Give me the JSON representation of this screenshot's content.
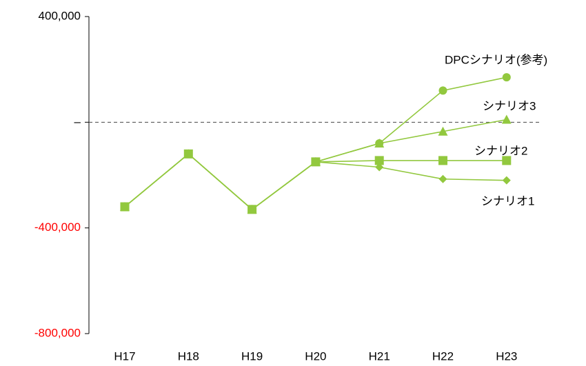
{
  "chart_data": {
    "type": "line",
    "categories": [
      "H17",
      "H18",
      "H19",
      "H20",
      "H21",
      "H22",
      "H23"
    ],
    "series": [
      {
        "name": "DPCシナリオ(参考)",
        "color": "#92c83e",
        "marker": "circle",
        "values": [
          -320000,
          -120000,
          -330000,
          -150000,
          -80000,
          120000,
          170000
        ]
      },
      {
        "name": "シナリオ3",
        "color": "#92c83e",
        "marker": "triangle",
        "values": [
          -320000,
          -120000,
          -330000,
          -150000,
          -80000,
          -35000,
          10000
        ]
      },
      {
        "name": "シナリオ1",
        "color": "#92c83e",
        "marker": "diamond",
        "values": [
          -320000,
          -120000,
          -330000,
          -150000,
          -170000,
          -215000,
          -220000
        ]
      },
      {
        "name": "シナリオ2",
        "color": "#92c83e",
        "marker": "square",
        "values": [
          -320000,
          -120000,
          -330000,
          -150000,
          -145000,
          -145000,
          -145000
        ]
      }
    ],
    "ylim": [
      -800000,
      400000
    ],
    "yticks": [
      {
        "value": 400000,
        "label": "400,000"
      },
      {
        "value": 0,
        "label": "–"
      },
      {
        "value": -400000,
        "label": "-400,000"
      },
      {
        "value": -800000,
        "label": "-800,000"
      }
    ],
    "negative_tick_color": "#ff0000",
    "zero_line": "dashed",
    "grid": false
  }
}
